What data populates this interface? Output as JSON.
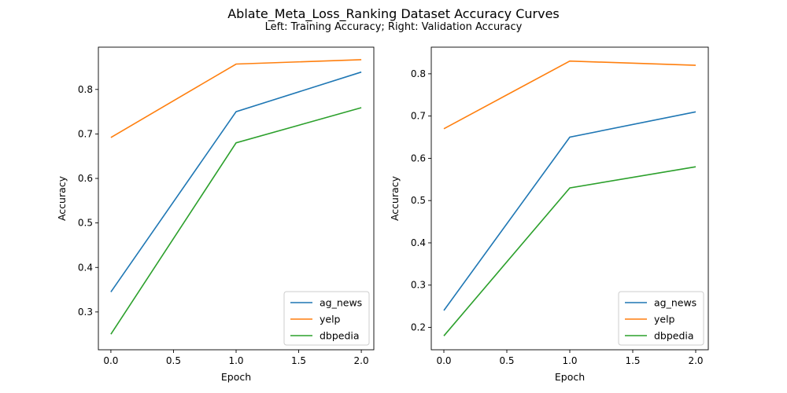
{
  "figure": {
    "title": "Ablate_Meta_Loss_Ranking Dataset Accuracy Curves",
    "subtitle": "Left: Training Accuracy; Right: Validation Accuracy"
  },
  "chart_data": [
    {
      "type": "line",
      "xlabel": "Epoch",
      "ylabel": "Accuracy",
      "xlim": [
        -0.1,
        2.1
      ],
      "ylim": [
        0.215,
        0.895
      ],
      "xticks": [
        "0.0",
        "0.5",
        "1.0",
        "1.5",
        "2.0"
      ],
      "yticks": [
        "0.3",
        "0.4",
        "0.5",
        "0.6",
        "0.7",
        "0.8"
      ],
      "x": [
        0,
        1,
        2
      ],
      "legend": "lower right",
      "grid": false,
      "series": [
        {
          "name": "ag_news",
          "color": "#1f77b4",
          "values": [
            0.345,
            0.75,
            0.839
          ]
        },
        {
          "name": "yelp",
          "color": "#ff7f0e",
          "values": [
            0.692,
            0.857,
            0.867
          ]
        },
        {
          "name": "dbpedia",
          "color": "#2ca02c",
          "values": [
            0.25,
            0.68,
            0.759
          ]
        }
      ]
    },
    {
      "type": "line",
      "xlabel": "Epoch",
      "ylabel": "Accuracy",
      "xlim": [
        -0.1,
        2.1
      ],
      "ylim": [
        0.147,
        0.863
      ],
      "xticks": [
        "0.0",
        "0.5",
        "1.0",
        "1.5",
        "2.0"
      ],
      "yticks": [
        "0.2",
        "0.3",
        "0.4",
        "0.5",
        "0.6",
        "0.7",
        "0.8"
      ],
      "x": [
        0,
        1,
        2
      ],
      "legend": "lower right",
      "grid": false,
      "series": [
        {
          "name": "ag_news",
          "color": "#1f77b4",
          "values": [
            0.24,
            0.65,
            0.71
          ]
        },
        {
          "name": "yelp",
          "color": "#ff7f0e",
          "values": [
            0.67,
            0.83,
            0.82
          ]
        },
        {
          "name": "dbpedia",
          "color": "#2ca02c",
          "values": [
            0.18,
            0.53,
            0.58
          ]
        }
      ]
    }
  ]
}
